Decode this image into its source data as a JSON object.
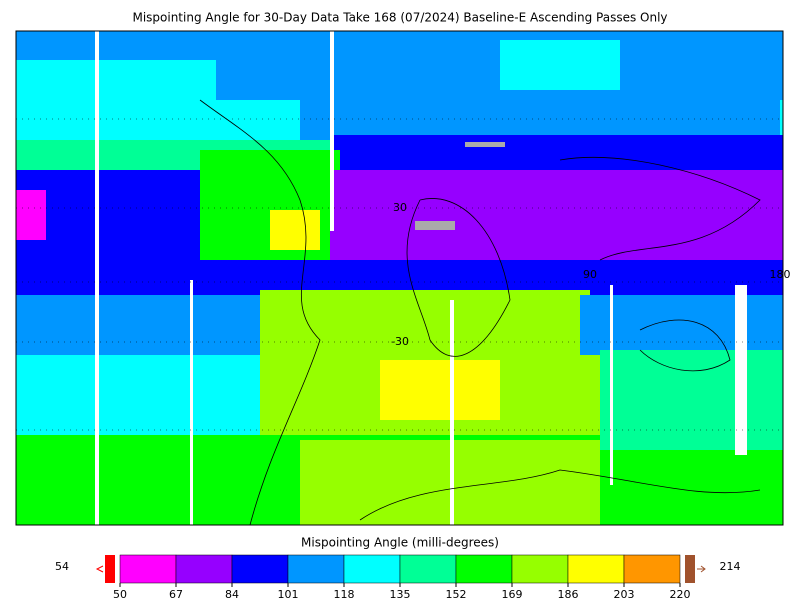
{
  "chart_data": {
    "type": "map",
    "title": "Mispointing Angle for 30-Day Data Take 168 (07/2024) Baseline-E Ascending Passes Only",
    "map_labels": [
      "30",
      "-30",
      "90",
      "180"
    ],
    "colorbar": {
      "label": "Mispointing Angle (milli-degrees)",
      "ticks": [
        50,
        67,
        84,
        101,
        118,
        135,
        152,
        169,
        186,
        203,
        220
      ],
      "colors": [
        "#ff00ff",
        "#9600ff",
        "#0000ff",
        "#0096ff",
        "#00ffff",
        "#00ff96",
        "#00ff00",
        "#96ff00",
        "#ffff00",
        "#ff9600"
      ],
      "under_color": "#ff0000",
      "over_color": "#a0522d",
      "min": 54,
      "max": 214
    }
  }
}
